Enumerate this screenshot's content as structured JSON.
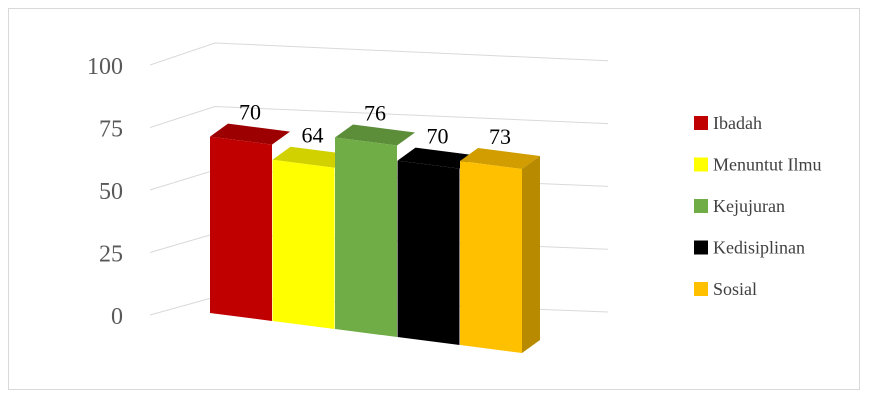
{
  "chart_data": {
    "type": "bar",
    "categories": [
      "Ibadah",
      "Menuntut Ilmu",
      "Kejujuran",
      "Kedisiplinan",
      "Sosial"
    ],
    "values": [
      70,
      64,
      76,
      70,
      73
    ],
    "yticks": [
      0,
      25,
      50,
      75,
      100
    ],
    "ylim": [
      0,
      100
    ],
    "grid": true,
    "legend_position": "right",
    "colors": {
      "Ibadah": "#c00000",
      "Menuntut Ilmu": "#ffff00",
      "Kejujuran": "#70ad47",
      "Kedisiplinan": "#000000",
      "Sosial": "#ffc000"
    }
  }
}
